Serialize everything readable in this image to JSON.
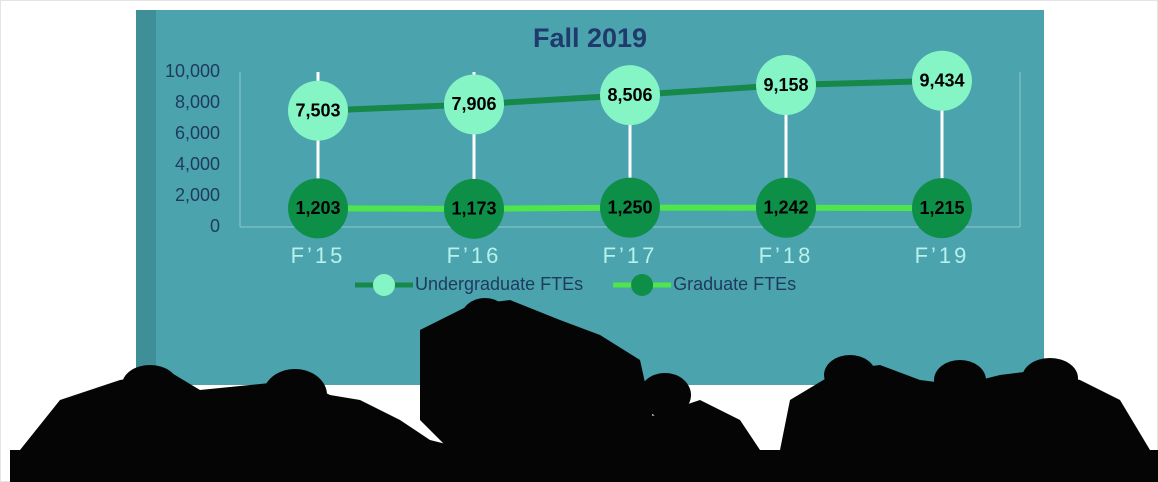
{
  "chart_data": {
    "type": "line",
    "title": "Fall 2019",
    "categories": [
      "F’15",
      "F’16",
      "F’17",
      "F’18",
      "F’19"
    ],
    "series": [
      {
        "name": "Undergraduate FTEs",
        "color": "#15884a",
        "marker_color": "#86f5c6",
        "values": [
          7503,
          7906,
          8506,
          9158,
          9434
        ],
        "value_labels": [
          "7,503",
          "7,906",
          "8,506",
          "9,158",
          "9,434"
        ]
      },
      {
        "name": "Graduate FTEs",
        "color": "#4ee64a",
        "marker_color": "#0e8f47",
        "values": [
          1203,
          1173,
          1250,
          1242,
          1215
        ],
        "value_labels": [
          "1,203",
          "1,173",
          "1,250",
          "1,242",
          "1,215"
        ]
      }
    ],
    "ylim": [
      0,
      10000
    ],
    "yticks": [
      0,
      {
        "value": 2000,
        "label": "2,000"
      },
      {
        "value": 4000,
        "label": "4,000"
      },
      {
        "value": 6000,
        "label": "6,000"
      },
      {
        "value": 8000,
        "label": "8,000"
      },
      {
        "value": 10000,
        "label": "10,000"
      }
    ],
    "legend": "bottom"
  }
}
